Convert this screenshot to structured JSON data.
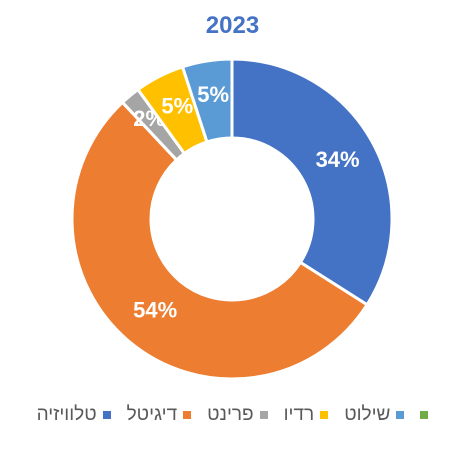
{
  "chart_data": {
    "type": "pie",
    "subtype": "donut",
    "title": "2023",
    "categories": [
      "טלוויזיה",
      "דיגיטל",
      "פרינט",
      "רדיו",
      "שילוט",
      ""
    ],
    "values": [
      34,
      54,
      2,
      5,
      5,
      0
    ],
    "labels": [
      "34%",
      "54%",
      "2%",
      "5%",
      "5%",
      ""
    ],
    "colors": [
      "#4472C4",
      "#ED7D31",
      "#A5A5A5",
      "#FFC000",
      "#5B9BD5",
      "#70AD47"
    ],
    "legend_position": "bottom",
    "title_color": "#4472C4"
  }
}
